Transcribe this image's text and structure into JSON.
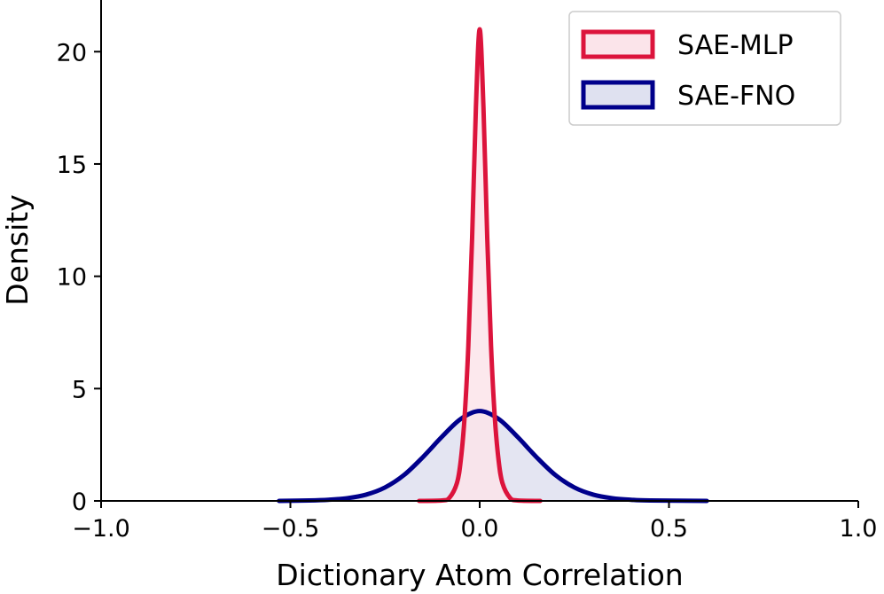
{
  "chart_data": {
    "type": "area",
    "title": "",
    "xlabel": "Dictionary Atom Correlation",
    "ylabel": "Density",
    "xlim": [
      -1.0,
      1.0
    ],
    "ylim": [
      0,
      22.3
    ],
    "xticks": [
      -1.0,
      -0.5,
      0.0,
      0.5,
      1.0
    ],
    "xtick_labels": [
      "−1.0",
      "−0.5",
      "0.0",
      "0.5",
      "1.0"
    ],
    "yticks": [
      0,
      5,
      10,
      15,
      20
    ],
    "ytick_labels": [
      "0",
      "5",
      "10",
      "15",
      "20"
    ],
    "grid": false,
    "legend_position": "top-right",
    "series": [
      {
        "name": "SAE-MLP",
        "color": "#dc143c",
        "fill": "#fbe4ea",
        "x": [
          -0.16,
          -0.1,
          -0.08,
          -0.06,
          -0.05,
          -0.04,
          -0.03,
          -0.02,
          -0.01,
          0.0,
          0.01,
          0.02,
          0.03,
          0.04,
          0.05,
          0.06,
          0.08,
          0.1,
          0.16
        ],
        "y": [
          0.0,
          0.02,
          0.14,
          0.8,
          1.8,
          3.7,
          6.9,
          11.7,
          17.5,
          21.0,
          17.5,
          11.7,
          6.9,
          3.7,
          1.8,
          0.8,
          0.14,
          0.02,
          0.0
        ]
      },
      {
        "name": "SAE-FNO",
        "color": "#00008b",
        "fill": "#dfe1f0",
        "x": [
          -0.53,
          -0.45,
          -0.4,
          -0.35,
          -0.3,
          -0.25,
          -0.2,
          -0.15,
          -0.1,
          -0.05,
          0.0,
          0.05,
          0.1,
          0.15,
          0.2,
          0.25,
          0.3,
          0.35,
          0.4,
          0.45,
          0.6
        ],
        "y": [
          0.0,
          0.02,
          0.05,
          0.12,
          0.28,
          0.6,
          1.15,
          1.95,
          2.85,
          3.65,
          4.0,
          3.65,
          2.85,
          1.95,
          1.15,
          0.6,
          0.28,
          0.12,
          0.05,
          0.02,
          0.0
        ]
      }
    ]
  }
}
